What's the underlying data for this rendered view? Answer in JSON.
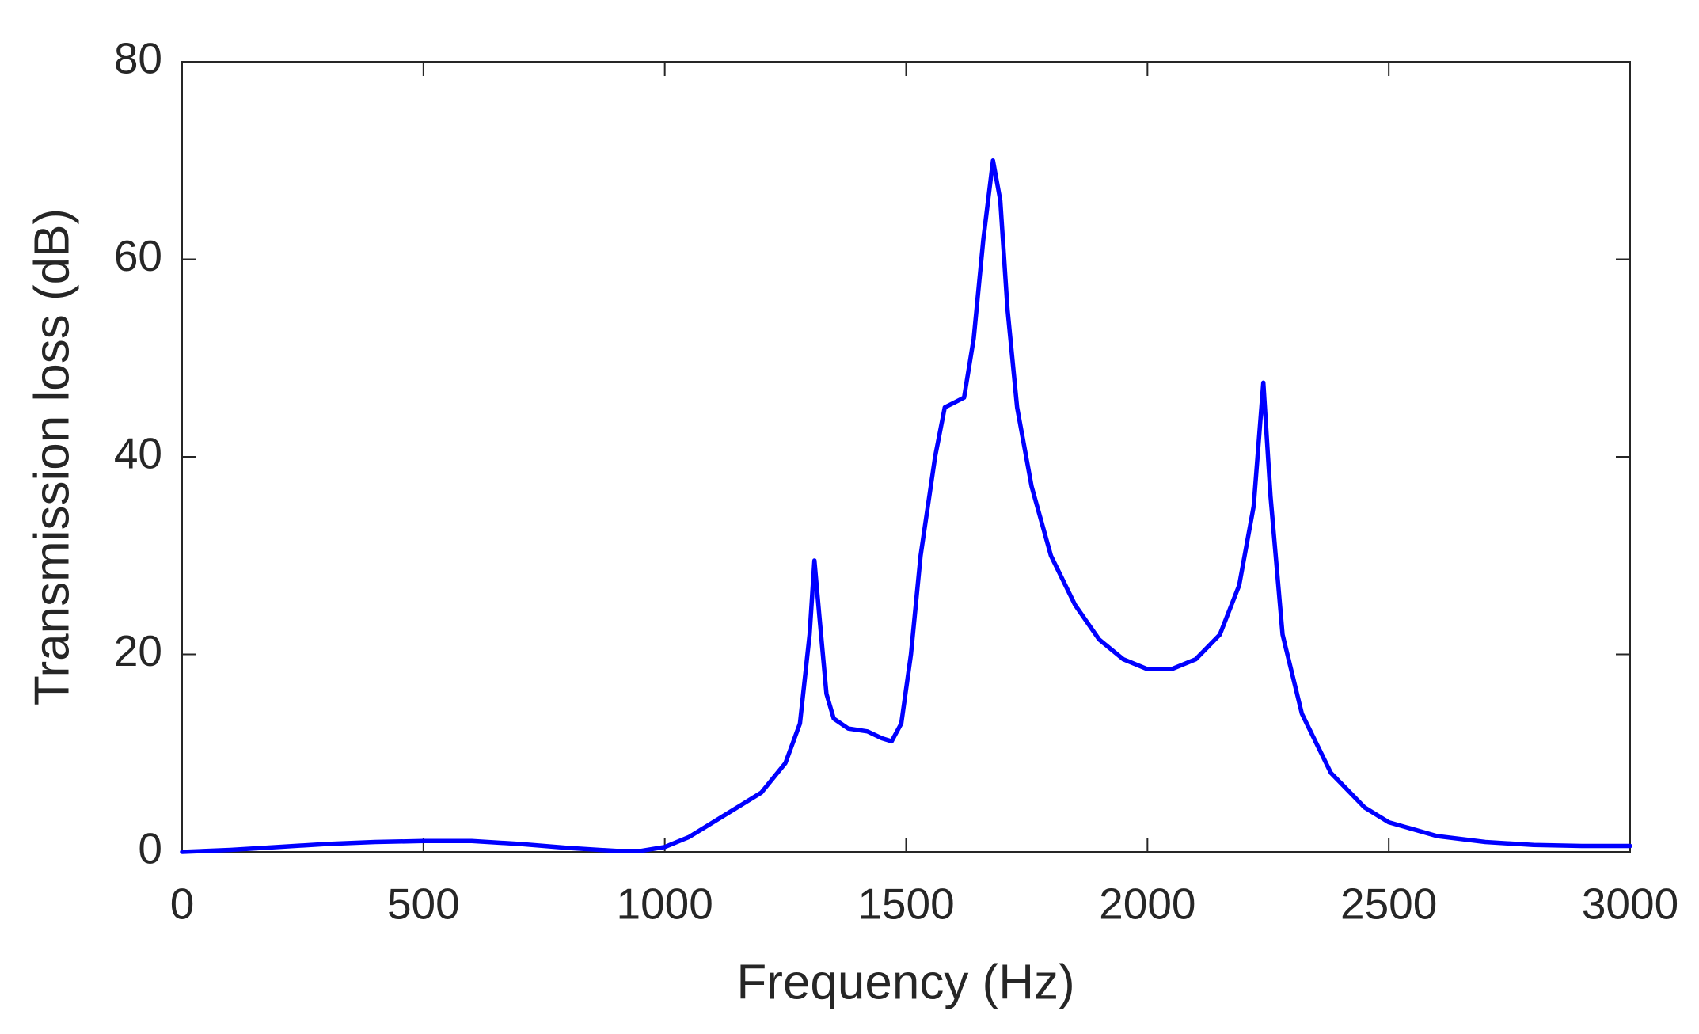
{
  "chart_data": {
    "type": "line",
    "x_label": "Frequency (Hz)",
    "y_label": "Transmission loss (dB)",
    "x": [
      0,
      100,
      200,
      300,
      400,
      500,
      600,
      700,
      800,
      900,
      950,
      1000,
      1050,
      1100,
      1150,
      1200,
      1250,
      1280,
      1300,
      1310,
      1320,
      1335,
      1350,
      1380,
      1420,
      1450,
      1470,
      1490,
      1510,
      1530,
      1560,
      1580,
      1600,
      1620,
      1640,
      1660,
      1680,
      1695,
      1710,
      1730,
      1760,
      1800,
      1850,
      1900,
      1950,
      2000,
      2050,
      2100,
      2150,
      2190,
      2220,
      2240,
      2255,
      2280,
      2320,
      2380,
      2450,
      2500,
      2600,
      2700,
      2800,
      2900,
      3000
    ],
    "series": [
      {
        "color": "#0000ff",
        "values": [
          0,
          0.2,
          0.5,
          0.8,
          1.0,
          1.1,
          1.1,
          0.8,
          0.4,
          0.1,
          0.1,
          0.5,
          1.5,
          3,
          4.5,
          6,
          9,
          13,
          22,
          29.5,
          24,
          16,
          13.5,
          12.5,
          12.2,
          11.5,
          11.2,
          13,
          20,
          30,
          40,
          45,
          45.5,
          46,
          52,
          62,
          70,
          66,
          55,
          45,
          37,
          30,
          25,
          21.5,
          19.5,
          18.5,
          18.5,
          19.5,
          22,
          27,
          35,
          47.5,
          36,
          22,
          14,
          8,
          4.5,
          3,
          1.6,
          1,
          0.7,
          0.6,
          0.6
        ]
      }
    ],
    "xlim": [
      0,
      3000
    ],
    "xticks": [
      0,
      500,
      1000,
      1500,
      2000,
      2500,
      3000
    ],
    "ylim": [
      0,
      80
    ],
    "yticks": [
      0,
      20,
      40,
      60,
      80
    ]
  }
}
